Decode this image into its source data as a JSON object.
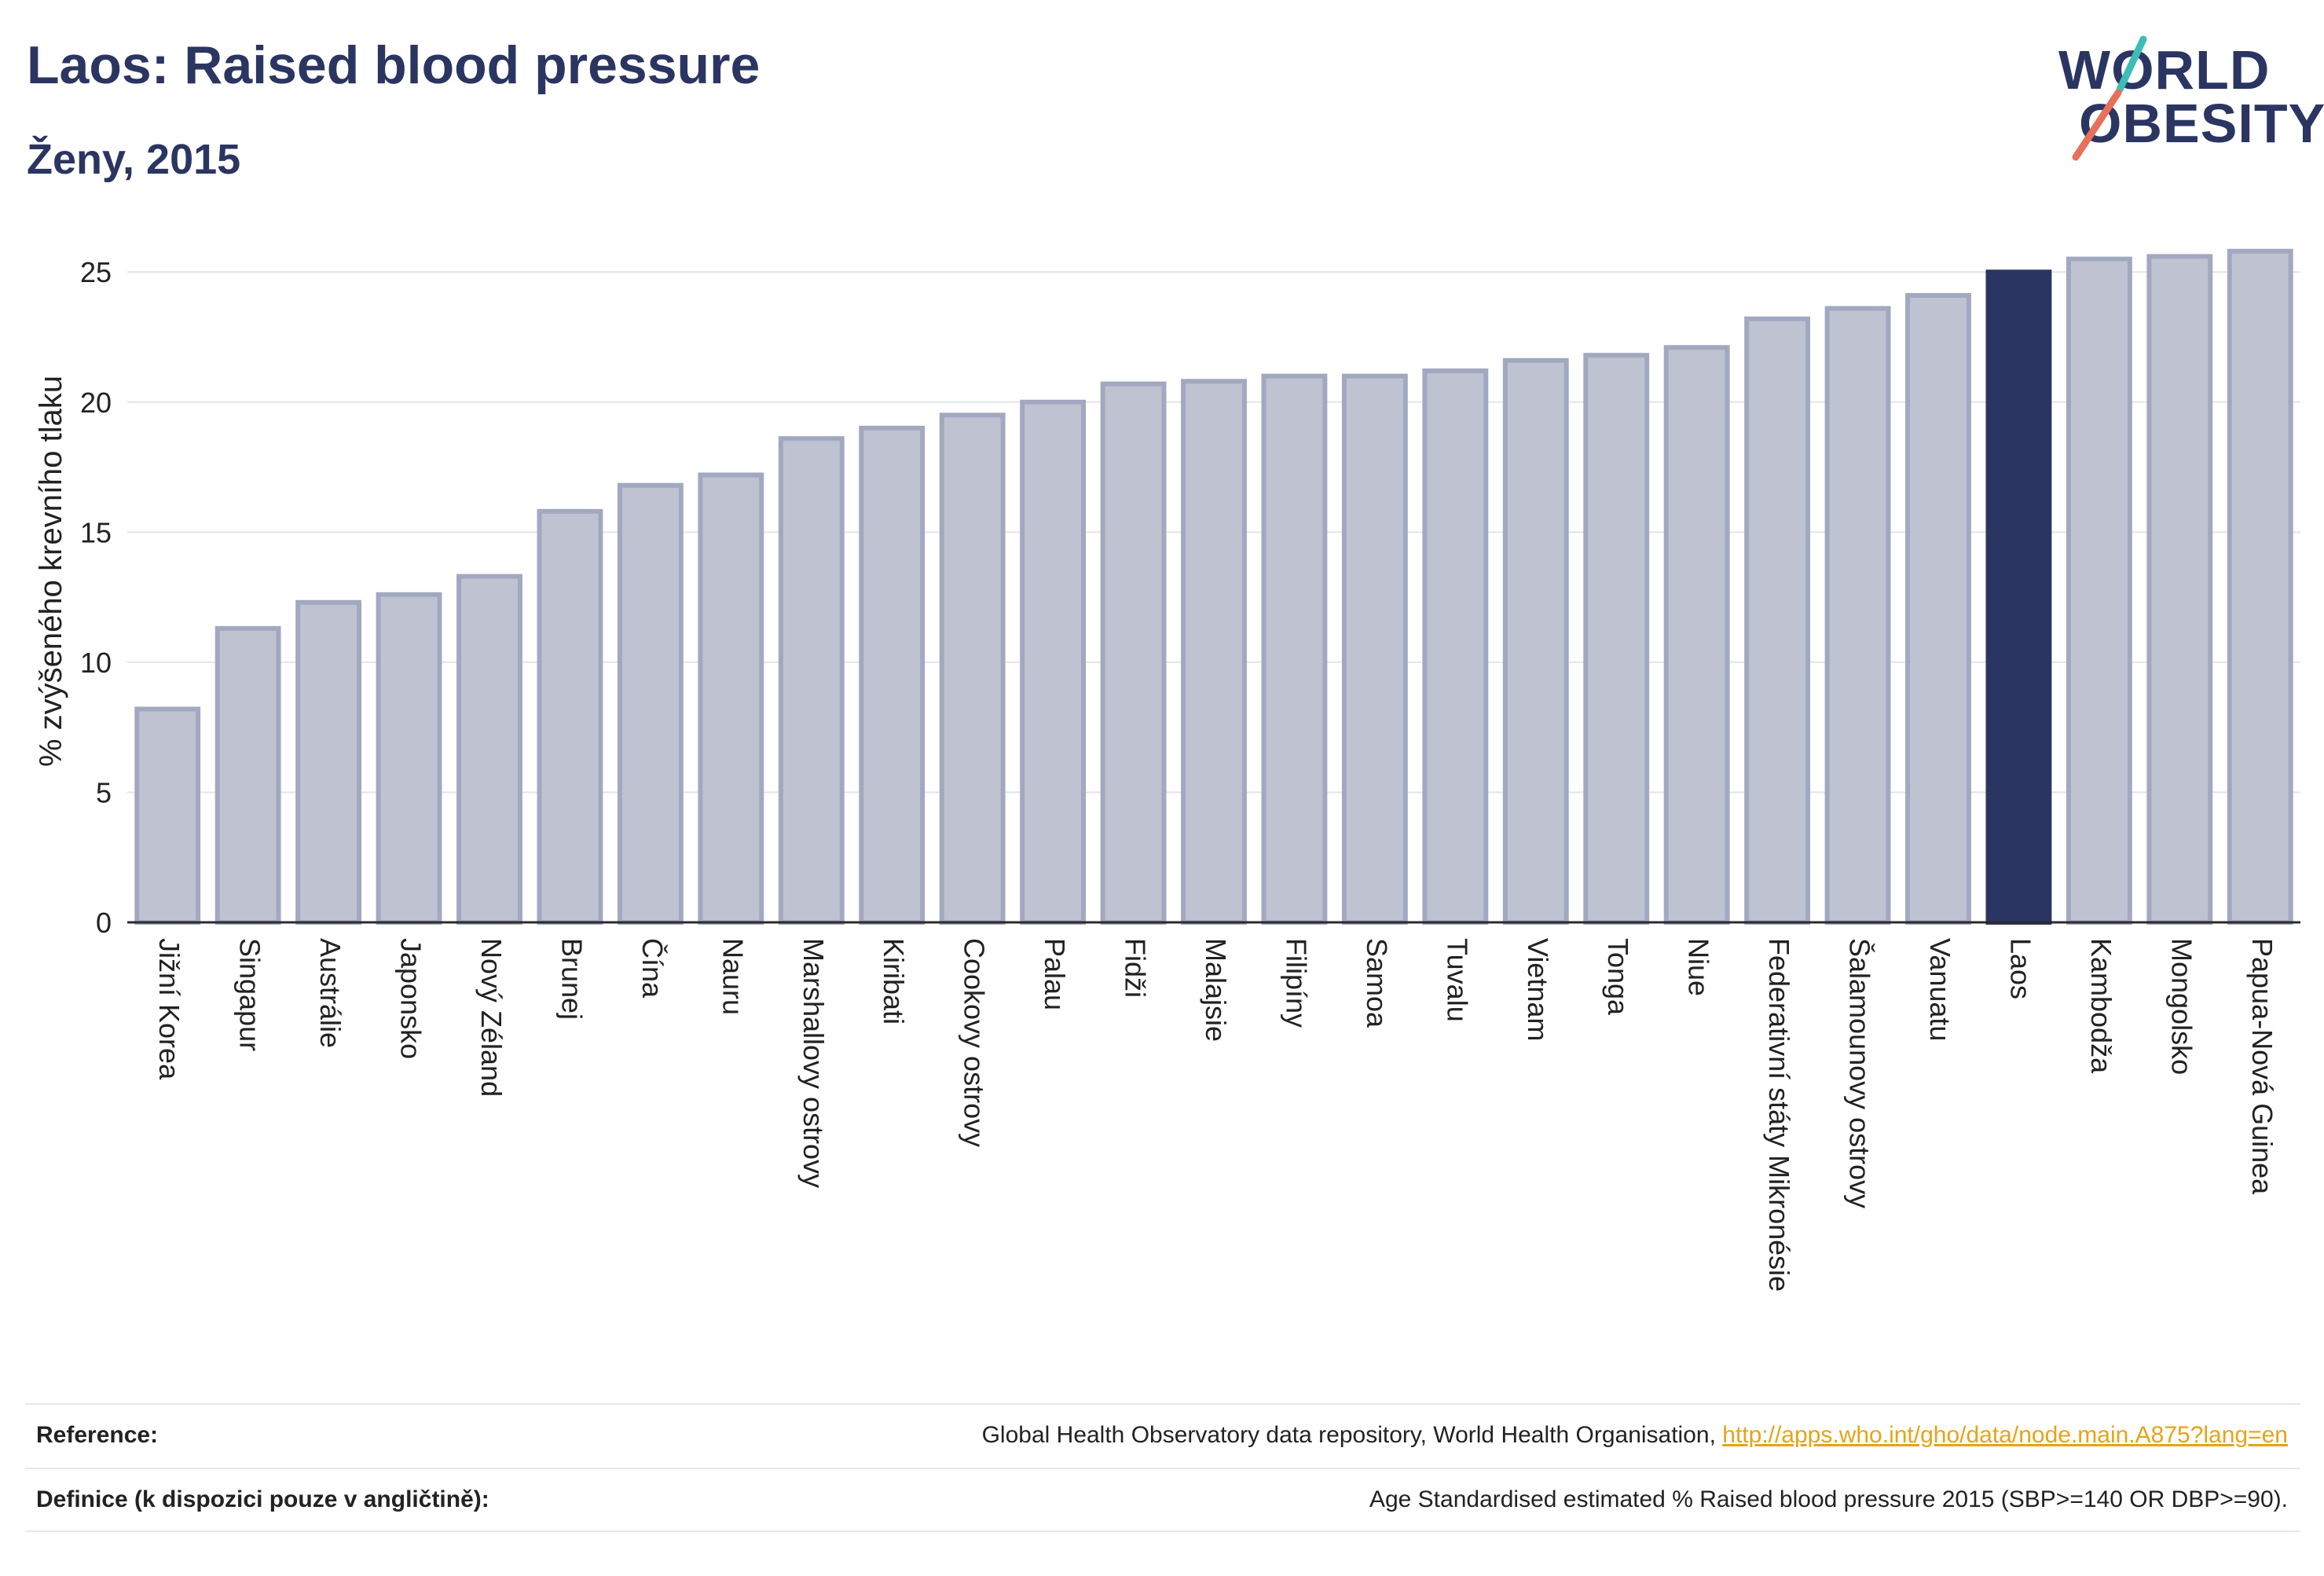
{
  "header": {
    "title": "Laos: Raised blood pressure",
    "subtitle": "Ženy, 2015"
  },
  "logo": {
    "line1": "WORLD",
    "line2": "OBESITY"
  },
  "colors": {
    "bar": "#bfc3d1",
    "bar_stroke": "#a2a8c0",
    "highlight": "#2b3561",
    "accent1": "#3dbdb4",
    "accent2": "#e8705a",
    "link": "#e8a317"
  },
  "chart_data": {
    "type": "bar",
    "ylabel": "% zvýšeného krevního tlaku",
    "ylim": [
      0,
      27
    ],
    "yticks": [
      0,
      5,
      10,
      15,
      20,
      25
    ],
    "grid": true,
    "highlight": "Laos",
    "categories": [
      "Jižní Korea",
      "Singapur",
      "Austrálie",
      "Japonsko",
      "Nový Zéland",
      "Brunej",
      "Čína",
      "Nauru",
      "Marshallovy ostrovy",
      "Kiribati",
      "Cookovy ostrovy",
      "Palau",
      "Fidži",
      "Malajsie",
      "Filipíny",
      "Samoa",
      "Tuvalu",
      "Vietnam",
      "Tonga",
      "Niue",
      "Federativní státy Mikronésie",
      "Šalamounovy ostrovy",
      "Vanuatu",
      "Laos",
      "Kambodža",
      "Mongolsko",
      "Papua-Nová Guinea"
    ],
    "values": [
      8.2,
      11.3,
      12.3,
      12.6,
      13.3,
      15.8,
      16.8,
      17.2,
      18.6,
      19.0,
      19.5,
      20.0,
      20.7,
      20.8,
      21.0,
      21.0,
      21.2,
      21.6,
      21.8,
      22.1,
      23.2,
      23.6,
      24.1,
      25.0,
      25.5,
      25.6,
      25.8
    ]
  },
  "footer": {
    "reference_label": "Reference:",
    "reference_text": "Global Health Observatory data repository, World Health Organisation, ",
    "reference_link": "http://apps.who.int/gho/data/node.main.A875?lang=en",
    "definition_label": "Definice (k dispozici pouze v angličtině):",
    "definition_text": "Age Standardised estimated % Raised blood pressure 2015 (SBP>=140 OR DBP>=90)."
  }
}
